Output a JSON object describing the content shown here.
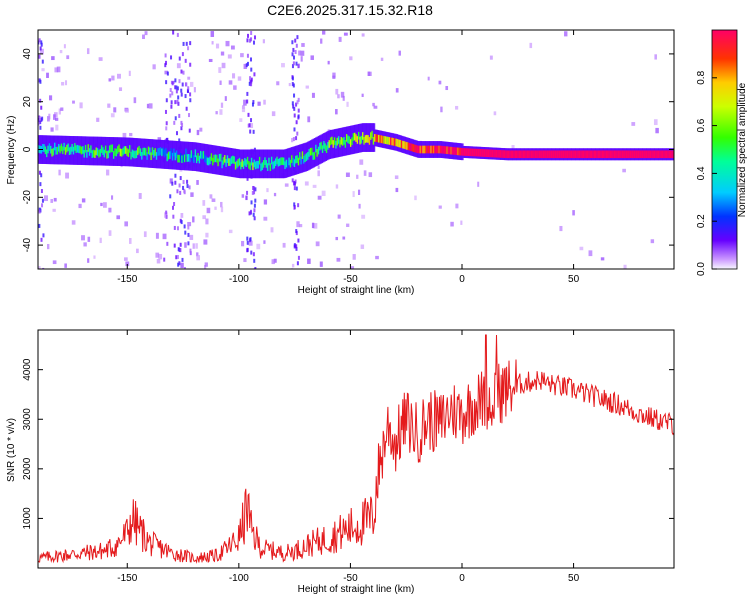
{
  "title": "C2E6.2025.317.15.32.R18",
  "chart_data": [
    {
      "type": "heatmap",
      "xlabel": "Height of straight line (km)",
      "ylabel": "Frequency (Hz)",
      "xlim": [
        -190,
        95
      ],
      "ylim": [
        -50,
        50
      ],
      "xticks": [
        "-150",
        "-100",
        "-50",
        "0",
        "50"
      ],
      "yticks": [
        "40",
        "20",
        "0",
        "-20",
        "-40"
      ],
      "colorbar": {
        "label": "Normalized spectral amplitude",
        "ticks": [
          "0.0",
          "0.2",
          "0.4",
          "0.6",
          "0.8"
        ],
        "range": [
          0,
          1
        ]
      },
      "ridge": [
        {
          "x": -190,
          "f": 0,
          "a": 0.45
        },
        {
          "x": -150,
          "f": -1,
          "a": 0.5
        },
        {
          "x": -120,
          "f": -3,
          "a": 0.35
        },
        {
          "x": -100,
          "f": -6,
          "a": 0.55
        },
        {
          "x": -80,
          "f": -6,
          "a": 0.4
        },
        {
          "x": -70,
          "f": -3,
          "a": 0.45
        },
        {
          "x": -60,
          "f": 2,
          "a": 0.55
        },
        {
          "x": -45,
          "f": 5,
          "a": 0.6
        },
        {
          "x": -40,
          "f": 5,
          "a": 0.75
        },
        {
          "x": -30,
          "f": 3,
          "a": 0.8
        },
        {
          "x": -20,
          "f": 0,
          "a": 0.9
        },
        {
          "x": -10,
          "f": 0,
          "a": 0.95
        },
        {
          "x": 0,
          "f": -1,
          "a": 1.0
        },
        {
          "x": 20,
          "f": -2,
          "a": 1.0
        },
        {
          "x": 60,
          "f": -2,
          "a": 1.0
        },
        {
          "x": 95,
          "f": -2,
          "a": 1.0
        }
      ]
    },
    {
      "type": "line",
      "xlabel": "Height of straight line (km)",
      "ylabel": "SNR (10 * v/v)",
      "xlim": [
        -190,
        95
      ],
      "ylim": [
        0,
        4800
      ],
      "xticks": [
        "-150",
        "-100",
        "-50",
        "0",
        "50"
      ],
      "yticks": [
        "4000",
        "3000",
        "2000",
        "1000"
      ],
      "series": [
        {
          "color": "#e41a1c",
          "points": [
            [
              -190,
              200
            ],
            [
              -180,
              250
            ],
            [
              -170,
              300
            ],
            [
              -160,
              350
            ],
            [
              -155,
              450
            ],
            [
              -150,
              700
            ],
            [
              -148,
              1000
            ],
            [
              -145,
              800
            ],
            [
              -140,
              500
            ],
            [
              -130,
              300
            ],
            [
              -120,
              200
            ],
            [
              -110,
              250
            ],
            [
              -105,
              400
            ],
            [
              -100,
              600
            ],
            [
              -98,
              900
            ],
            [
              -96,
              1300
            ],
            [
              -95,
              800
            ],
            [
              -90,
              400
            ],
            [
              -80,
              300
            ],
            [
              -75,
              350
            ],
            [
              -70,
              450
            ],
            [
              -60,
              600
            ],
            [
              -55,
              700
            ],
            [
              -50,
              800
            ],
            [
              -45,
              900
            ],
            [
              -40,
              1000
            ],
            [
              -38,
              1800
            ],
            [
              -35,
              2500
            ],
            [
              -33,
              2900
            ],
            [
              -30,
              2500
            ],
            [
              -25,
              3000
            ],
            [
              -20,
              2700
            ],
            [
              -15,
              3000
            ],
            [
              -10,
              2900
            ],
            [
              -5,
              3200
            ],
            [
              0,
              3100
            ],
            [
              5,
              3300
            ],
            [
              10,
              3400
            ],
            [
              15,
              3500
            ],
            [
              20,
              3600
            ],
            [
              25,
              3700
            ],
            [
              30,
              3750
            ],
            [
              35,
              3800
            ],
            [
              40,
              3700
            ],
            [
              50,
              3600
            ],
            [
              60,
              3450
            ],
            [
              70,
              3300
            ],
            [
              80,
              3100
            ],
            [
              90,
              2950
            ],
            [
              95,
              2900
            ]
          ]
        }
      ]
    }
  ]
}
